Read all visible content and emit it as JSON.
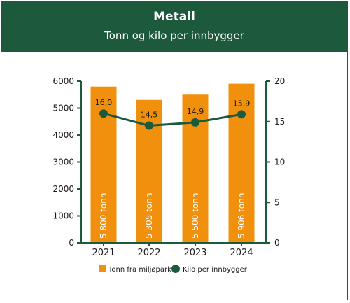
{
  "chart_data": {
    "type": "bar",
    "title": "Metall",
    "subtitle": "Tonn og kilo per innbygger",
    "categories": [
      "2021",
      "2022",
      "2023",
      "2024"
    ],
    "series": [
      {
        "name": "Tonn fra miljøpark",
        "kind": "bar",
        "axis": "left",
        "values": [
          5800,
          5305,
          5500,
          5906
        ],
        "labels": [
          "5 800 tonn",
          "5 305 tonn",
          "5 500 tonn",
          "5 906 tonn"
        ]
      },
      {
        "name": "Kilo per innbygger",
        "kind": "line",
        "axis": "right",
        "values": [
          16.0,
          14.5,
          14.9,
          15.9
        ],
        "labels": [
          "16,0",
          "14,5",
          "14,9",
          "15,9"
        ]
      }
    ],
    "y_left": {
      "min": 0,
      "max": 6000,
      "ticks": [
        "0",
        "1000",
        "2000",
        "3000",
        "4000",
        "5000",
        "6000"
      ]
    },
    "y_right": {
      "min": 0,
      "max": 20,
      "ticks": [
        "0",
        "5",
        "10",
        "15",
        "20"
      ]
    },
    "legend_position": "bottom",
    "colors": {
      "header": "#1d5a3c",
      "bar": "#f0900c",
      "line": "#1d5a3c",
      "axis": "#1d5a3c"
    }
  }
}
